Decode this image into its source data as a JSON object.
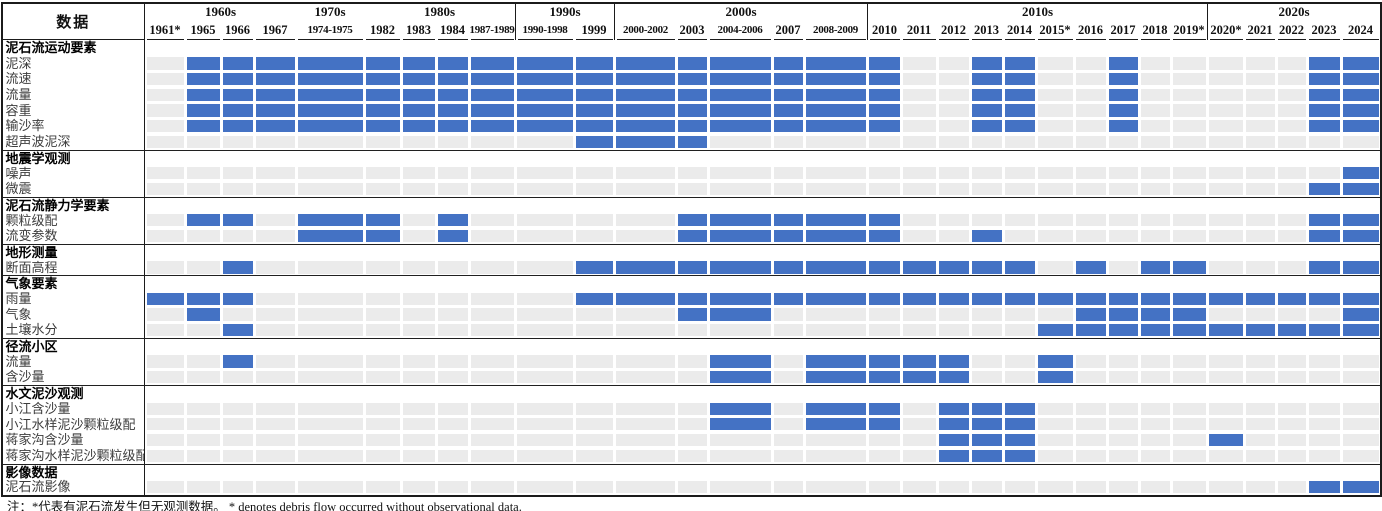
{
  "chart_data": {
    "type": "heatmap",
    "corner_label": "数据",
    "note": "注：*代表有泥石流发生但无观测数据。  * denotes debris flow occurred without observational data.",
    "legend_position": "none",
    "grid": "light",
    "colors": {
      "filled": "#4472C4",
      "empty": "#EBEBEB",
      "line": "#1b1b1b"
    },
    "x_categories": [
      "1961*",
      "1965",
      "1966",
      "1967",
      "1974-1975",
      "1982",
      "1983",
      "1984",
      "1987-1989",
      "1990-1998",
      "1999",
      "2000-2002",
      "2003",
      "2004-2006",
      "2007",
      "2008-2009",
      "2010",
      "2011",
      "2012",
      "2013",
      "2014",
      "2015*",
      "2016",
      "2017",
      "2018",
      "2019*",
      "2020*",
      "2021",
      "2022",
      "2023",
      "2024"
    ],
    "decades": [
      {
        "label": "1960s",
        "span": 4
      },
      {
        "label": "1970s",
        "span": 1
      },
      {
        "label": "1980s",
        "span": 4
      },
      {
        "label": "1990s",
        "span": 2
      },
      {
        "label": "2000s",
        "span": 5
      },
      {
        "label": "2010s",
        "span": 10
      },
      {
        "label": "2020s",
        "span": 5
      }
    ],
    "sections": [
      {
        "header": "泥石流运动要素",
        "rows": [
          {
            "label": "泥深",
            "filled": [
              "1965",
              "1966",
              "1967",
              "1974-1975",
              "1982",
              "1983",
              "1984",
              "1987-1989",
              "1990-1998",
              "1999",
              "2000-2002",
              "2003",
              "2004-2006",
              "2007",
              "2008-2009",
              "2010",
              "2013",
              "2014",
              "2017",
              "2023",
              "2024"
            ]
          },
          {
            "label": "流速",
            "filled": [
              "1965",
              "1966",
              "1967",
              "1974-1975",
              "1982",
              "1983",
              "1984",
              "1987-1989",
              "1990-1998",
              "1999",
              "2000-2002",
              "2003",
              "2004-2006",
              "2007",
              "2008-2009",
              "2010",
              "2013",
              "2014",
              "2017",
              "2023",
              "2024"
            ]
          },
          {
            "label": "流量",
            "filled": [
              "1965",
              "1966",
              "1967",
              "1974-1975",
              "1982",
              "1983",
              "1984",
              "1987-1989",
              "1990-1998",
              "1999",
              "2000-2002",
              "2003",
              "2004-2006",
              "2007",
              "2008-2009",
              "2010",
              "2013",
              "2014",
              "2017",
              "2023",
              "2024"
            ]
          },
          {
            "label": "容重",
            "filled": [
              "1965",
              "1966",
              "1967",
              "1974-1975",
              "1982",
              "1983",
              "1984",
              "1987-1989",
              "1990-1998",
              "1999",
              "2000-2002",
              "2003",
              "2004-2006",
              "2007",
              "2008-2009",
              "2010",
              "2013",
              "2014",
              "2017",
              "2023",
              "2024"
            ]
          },
          {
            "label": "输沙率",
            "filled": [
              "1965",
              "1966",
              "1967",
              "1974-1975",
              "1982",
              "1983",
              "1984",
              "1987-1989",
              "1990-1998",
              "1999",
              "2000-2002",
              "2003",
              "2004-2006",
              "2007",
              "2008-2009",
              "2010",
              "2013",
              "2014",
              "2017",
              "2023",
              "2024"
            ]
          },
          {
            "label": "超声波泥深",
            "filled": [
              "1999",
              "2000-2002",
              "2003"
            ]
          }
        ]
      },
      {
        "header": "地震学观测",
        "rows": [
          {
            "label": "噪声",
            "filled": [
              "2024"
            ]
          },
          {
            "label": "微震",
            "filled": [
              "2023",
              "2024"
            ]
          }
        ]
      },
      {
        "header": "泥石流静力学要素",
        "rows": [
          {
            "label": "颗粒级配",
            "filled": [
              "1965",
              "1966",
              "1974-1975",
              "1982",
              "1984",
              "2003",
              "2004-2006",
              "2007",
              "2008-2009",
              "2010",
              "2023",
              "2024"
            ]
          },
          {
            "label": "流变参数",
            "filled": [
              "1974-1975",
              "1982",
              "1984",
              "2003",
              "2004-2006",
              "2007",
              "2008-2009",
              "2010",
              "2013",
              "2023",
              "2024"
            ]
          }
        ]
      },
      {
        "header": "地形测量",
        "rows": [
          {
            "label": "断面高程",
            "filled": [
              "1966",
              "1999",
              "2000-2002",
              "2003",
              "2004-2006",
              "2007",
              "2008-2009",
              "2010",
              "2011",
              "2012",
              "2013",
              "2014",
              "2016",
              "2018",
              "2019*",
              "2023",
              "2024"
            ]
          }
        ]
      },
      {
        "header": "气象要素",
        "rows": [
          {
            "label": "雨量",
            "filled": [
              "1961*",
              "1965",
              "1966",
              "1999",
              "2000-2002",
              "2003",
              "2004-2006",
              "2007",
              "2008-2009",
              "2010",
              "2011",
              "2012",
              "2013",
              "2014",
              "2015*",
              "2016",
              "2017",
              "2018",
              "2019*",
              "2020*",
              "2021",
              "2022",
              "2023",
              "2024"
            ]
          },
          {
            "label": "气象",
            "filled": [
              "1965",
              "2003",
              "2004-2006",
              "2016",
              "2017",
              "2018",
              "2019*",
              "2024"
            ]
          },
          {
            "label": "土壤水分",
            "filled": [
              "1966",
              "2015*",
              "2016",
              "2017",
              "2018",
              "2019*",
              "2020*",
              "2021",
              "2022",
              "2023",
              "2024"
            ]
          }
        ]
      },
      {
        "header": "径流小区",
        "rows": [
          {
            "label": "流量",
            "filled": [
              "1966",
              "2004-2006",
              "2008-2009",
              "2010",
              "2011",
              "2012",
              "2015*"
            ]
          },
          {
            "label": "含沙量",
            "filled": [
              "2004-2006",
              "2008-2009",
              "2010",
              "2011",
              "2012",
              "2015*"
            ]
          }
        ]
      },
      {
        "header": "水文泥沙观测",
        "rows": [
          {
            "label": "小江含沙量",
            "filled": [
              "2004-2006",
              "2008-2009",
              "2010",
              "2012",
              "2013",
              "2014"
            ]
          },
          {
            "label": "小江水样泥沙颗粒级配",
            "filled": [
              "2004-2006",
              "2008-2009",
              "2010",
              "2012",
              "2013",
              "2014"
            ]
          },
          {
            "label": "蒋家沟含沙量",
            "filled": [
              "2012",
              "2013",
              "2014",
              "2020*"
            ]
          },
          {
            "label": "蒋家沟水样泥沙颗粒级配",
            "filled": [
              "2012",
              "2013",
              "2014"
            ]
          }
        ]
      },
      {
        "header": "影像数据",
        "rows": [
          {
            "label": "泥石流影像",
            "filled": [
              "2023",
              "2024"
            ]
          }
        ]
      }
    ]
  }
}
